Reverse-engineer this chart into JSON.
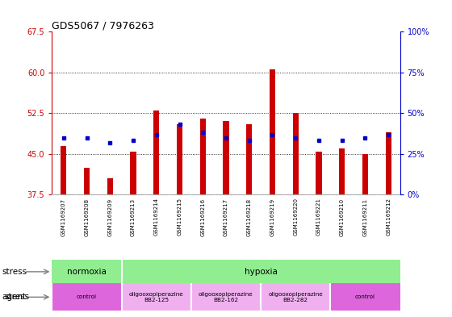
{
  "title": "GDS5067 / 7976263",
  "samples": [
    "GSM1169207",
    "GSM1169208",
    "GSM1169209",
    "GSM1169213",
    "GSM1169214",
    "GSM1169215",
    "GSM1169216",
    "GSM1169217",
    "GSM1169218",
    "GSM1169219",
    "GSM1169220",
    "GSM1169221",
    "GSM1169210",
    "GSM1169211",
    "GSM1169212"
  ],
  "counts": [
    46.5,
    42.5,
    40.5,
    45.5,
    53.0,
    50.5,
    51.5,
    51.0,
    50.5,
    60.5,
    52.5,
    45.5,
    46.0,
    45.0,
    49.0
  ],
  "percentiles": [
    48.0,
    48.0,
    47.0,
    47.5,
    48.5,
    50.5,
    49.0,
    48.0,
    47.5,
    48.5,
    48.0,
    47.5,
    47.5,
    48.0,
    48.5
  ],
  "y_min": 37.5,
  "y_max": 67.5,
  "y_ticks_left": [
    37.5,
    45.0,
    52.5,
    60.0,
    67.5
  ],
  "y_ticks_right_labels": [
    "0%",
    "25%",
    "50%",
    "75%",
    "100%"
  ],
  "bar_color": "#cc0000",
  "dot_color": "#0000cc",
  "background_color": "#ffffff",
  "plot_bg_color": "#ffffff",
  "xtick_bg_color": "#d0d0d0",
  "grid_color": "#000000",
  "stress_normoxia": {
    "label": "normoxia",
    "span": [
      0,
      3
    ],
    "color": "#90ee90"
  },
  "stress_hypoxia": {
    "label": "hypoxia",
    "span": [
      3,
      15
    ],
    "color": "#7dda7d"
  },
  "stress_row_color": "#90ee90",
  "agent_groups": [
    {
      "label": "control",
      "span": [
        0,
        3
      ],
      "color": "#dd66dd"
    },
    {
      "label": "oligooxopiperazine\nBB2-125",
      "span": [
        3,
        6
      ],
      "color": "#f0b0f0"
    },
    {
      "label": "oligooxopiperazine\nBB2-162",
      "span": [
        6,
        9
      ],
      "color": "#f0b0f0"
    },
    {
      "label": "oligooxopiperazine\nBB2-282",
      "span": [
        9,
        12
      ],
      "color": "#f0b0f0"
    },
    {
      "label": "control",
      "span": [
        12,
        15
      ],
      "color": "#dd66dd"
    }
  ],
  "legend_count_color": "#cc0000",
  "legend_pct_color": "#0000cc",
  "bar_width": 0.25
}
